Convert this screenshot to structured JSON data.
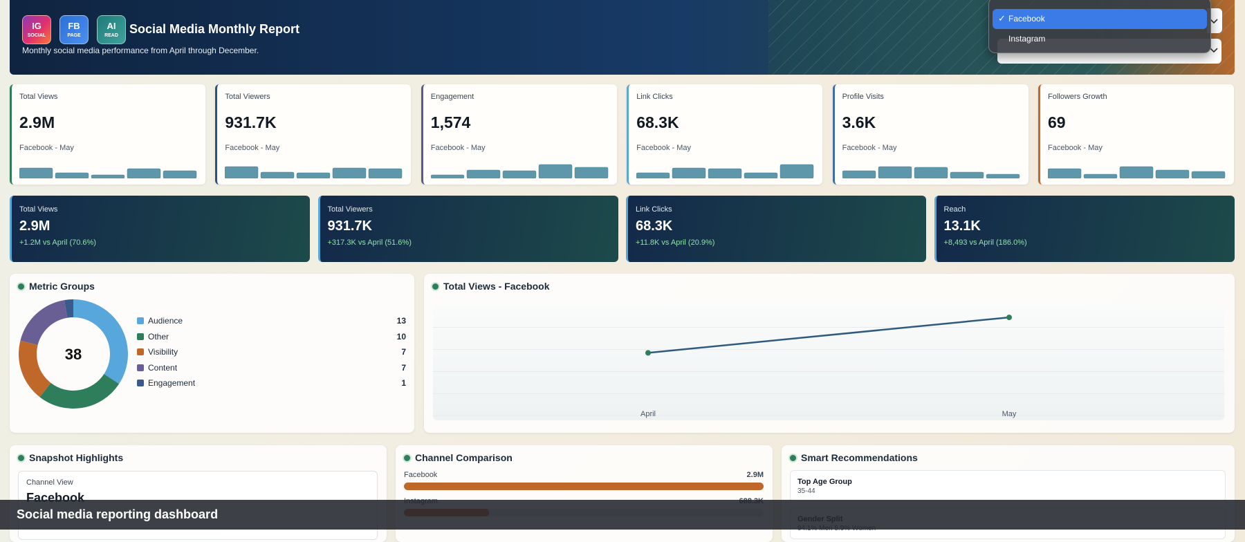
{
  "header": {
    "badges": [
      {
        "label": "IG",
        "sub": "SOCIAL"
      },
      {
        "label": "FB",
        "sub": "PAGE"
      },
      {
        "label": "AI",
        "sub": "READ"
      }
    ],
    "title": "Social Media Monthly Report",
    "subtitle": "Monthly social media performance from April through December."
  },
  "channel_dropdown": {
    "options": [
      {
        "label": "Facebook",
        "selected": true
      },
      {
        "label": "Instagram",
        "selected": false
      }
    ]
  },
  "kpi_cards": {
    "trend_ylim": [
      0,
      100
    ],
    "cards": [
      {
        "label": "Total Views",
        "value": "2.9M",
        "context": "Facebook - May",
        "color": "#2e7d5b",
        "trend": [
          75,
          40,
          25,
          70,
          55
        ]
      },
      {
        "label": "Total Viewers",
        "value": "931.7K",
        "context": "Facebook - May",
        "color": "#2f4f7f",
        "trend": [
          85,
          45,
          40,
          75,
          70
        ]
      },
      {
        "label": "Engagement",
        "value": "1,574",
        "context": "Facebook - May",
        "color": "#5a5a8a",
        "trend": [
          25,
          60,
          55,
          100,
          80
        ]
      },
      {
        "label": "Link Clicks",
        "value": "68.3K",
        "context": "Facebook - May",
        "color": "#5aa7d6",
        "trend": [
          40,
          75,
          70,
          40,
          100
        ]
      },
      {
        "label": "Profile Visits",
        "value": "3.6K",
        "context": "Facebook - May",
        "color": "#3d6ea8",
        "trend": [
          55,
          85,
          80,
          45,
          30
        ]
      },
      {
        "label": "Followers Growth",
        "value": "69",
        "context": "Facebook - May",
        "color": "#c0672a",
        "trend": [
          70,
          30,
          85,
          60,
          50
        ]
      }
    ]
  },
  "comparison_cards": [
    {
      "label": "Total Views",
      "value": "2.9M",
      "change": "+1.2M vs April (70.6%)"
    },
    {
      "label": "Total Viewers",
      "value": "931.7K",
      "change": "+317.3K vs April (51.6%)"
    },
    {
      "label": "Link Clicks",
      "value": "68.3K",
      "change": "+11.8K vs April (20.9%)"
    },
    {
      "label": "Reach",
      "value": "13.1K",
      "change": "+8,493 vs April (186.0%)"
    }
  ],
  "metric_groups": {
    "title": "Metric Groups",
    "total": 38,
    "items": [
      {
        "name": "Audience",
        "value": 13,
        "color": "#57a7dc"
      },
      {
        "name": "Other",
        "value": 10,
        "color": "#2e7d5b"
      },
      {
        "name": "Visibility",
        "value": 7,
        "color": "#c0672a"
      },
      {
        "name": "Content",
        "value": 7,
        "color": "#6a5f94"
      },
      {
        "name": "Engagement",
        "value": 1,
        "color": "#3a5a8c"
      }
    ]
  },
  "line_chart": {
    "type": "line",
    "title": "Total Views - Facebook",
    "categories": [
      "April",
      "May"
    ],
    "values": [
      1700000,
      2900000
    ],
    "ylim": [
      0,
      3300000
    ],
    "color": "#2f5a7e",
    "marker_color": "#2e7d5b"
  },
  "snapshot": {
    "title": "Snapshot Highlights",
    "label": "Channel View",
    "value": "Facebook"
  },
  "channel_comparison": {
    "title": "Channel Comparison",
    "xlim": [
      0,
      2900000
    ],
    "rows": [
      {
        "name": "Facebook",
        "value": 2900000,
        "value_label": "2.9M",
        "color": "#c0672a"
      },
      {
        "name": "Instagram",
        "value": 688300,
        "value_label": "688.3K",
        "color": "#c0672a"
      }
    ]
  },
  "recommendations": {
    "title": "Smart Recommendations",
    "items": [
      {
        "label": "Top Age Group",
        "value": "35-44"
      },
      {
        "label": "Gender Split",
        "value": "94.1% Men 5.9% Women"
      }
    ]
  },
  "footer": {
    "caption": "Social media reporting dashboard"
  }
}
